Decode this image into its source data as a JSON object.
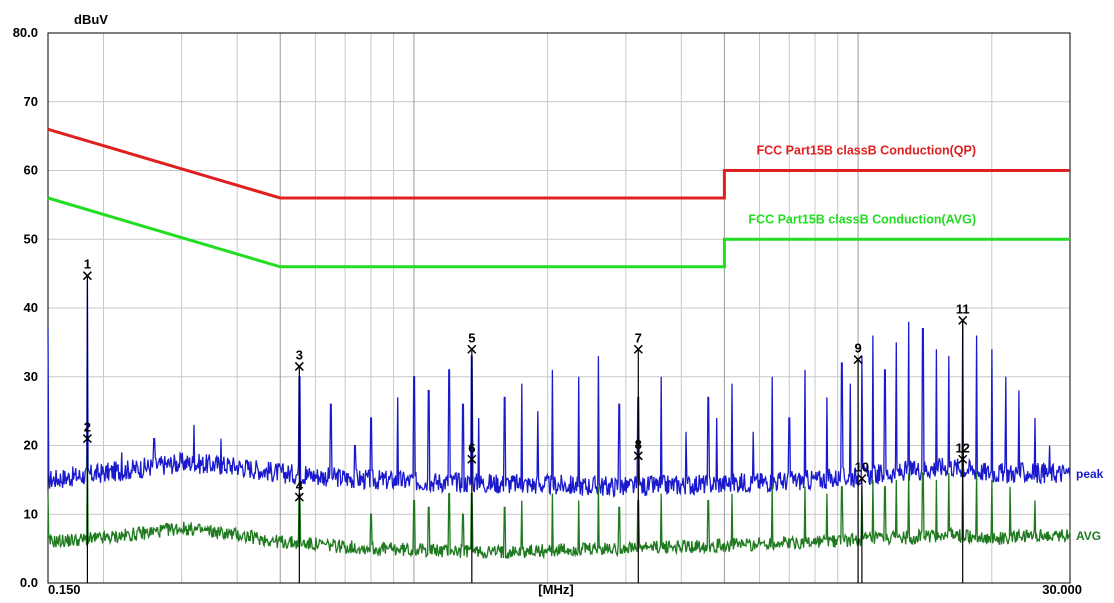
{
  "chart_data": {
    "type": "line",
    "title": "",
    "ylabel": "dBuV",
    "xlabel": "[MHz]",
    "x_scale": "log",
    "xlim": [
      0.15,
      30.0
    ],
    "ylim": [
      0,
      80
    ],
    "grid": true,
    "y_tick_labels": [
      {
        "value": 0,
        "label": "0.0"
      },
      {
        "value": 10,
        "label": "10"
      },
      {
        "value": 20,
        "label": "20"
      },
      {
        "value": 30,
        "label": "30"
      },
      {
        "value": 40,
        "label": "40"
      },
      {
        "value": 50,
        "label": "50"
      },
      {
        "value": 60,
        "label": "60"
      },
      {
        "value": 70,
        "label": "70"
      },
      {
        "value": 80,
        "label": "80.0"
      }
    ],
    "x_tick_labels": [
      {
        "value": 0.15,
        "label": "0.150"
      },
      {
        "value": 30.0,
        "label": "30.000"
      }
    ],
    "colors": {
      "qp_limit": "#e02020",
      "avg_limit": "#22dd22",
      "peak": "#1a1acc",
      "avg": "#1f7a1f",
      "marker": "#000000",
      "grid": "#c8c8c8"
    },
    "limit_lines": [
      {
        "name": "FCC  Part15B  classB  Conduction(QP)",
        "color_key": "qp_limit",
        "points": [
          [
            0.15,
            66
          ],
          [
            0.5,
            56
          ],
          [
            5.0,
            56
          ],
          [
            5.0,
            60
          ],
          [
            30.0,
            60
          ]
        ]
      },
      {
        "name": "FCC  Part15B  classB  Conduction(AVG)",
        "color_key": "avg_limit",
        "points": [
          [
            0.15,
            56
          ],
          [
            0.5,
            46
          ],
          [
            5.0,
            46
          ],
          [
            5.0,
            50
          ],
          [
            30.0,
            50
          ]
        ]
      }
    ],
    "traces": [
      {
        "name": "peak",
        "color_key": "peak",
        "baseline": [
          [
            0.15,
            15
          ],
          [
            0.2,
            16
          ],
          [
            0.3,
            17.5
          ],
          [
            0.4,
            17
          ],
          [
            0.5,
            16
          ],
          [
            0.8,
            15
          ],
          [
            1.5,
            14.5
          ],
          [
            3.0,
            14
          ],
          [
            5.0,
            14.5
          ],
          [
            8.0,
            15
          ],
          [
            12.0,
            16
          ],
          [
            16.0,
            17
          ],
          [
            20.0,
            16
          ],
          [
            30.0,
            16
          ]
        ],
        "spikes": [
          [
            0.15,
            37
          ],
          [
            0.184,
            44
          ],
          [
            0.22,
            19
          ],
          [
            0.26,
            21
          ],
          [
            0.32,
            23
          ],
          [
            0.368,
            21
          ],
          [
            0.552,
            30
          ],
          [
            0.57,
            17
          ],
          [
            0.65,
            26
          ],
          [
            0.736,
            20
          ],
          [
            0.8,
            24
          ],
          [
            0.92,
            27
          ],
          [
            1.0,
            30
          ],
          [
            1.08,
            28
          ],
          [
            1.2,
            31
          ],
          [
            1.29,
            26
          ],
          [
            1.35,
            33
          ],
          [
            1.4,
            24
          ],
          [
            1.6,
            27
          ],
          [
            1.75,
            29
          ],
          [
            1.9,
            25
          ],
          [
            2.05,
            31
          ],
          [
            2.35,
            30
          ],
          [
            2.6,
            33
          ],
          [
            2.9,
            26
          ],
          [
            3.2,
            27
          ],
          [
            3.6,
            30
          ],
          [
            4.1,
            22
          ],
          [
            4.6,
            27
          ],
          [
            4.8,
            24
          ],
          [
            5.2,
            29
          ],
          [
            5.8,
            22
          ],
          [
            6.4,
            30
          ],
          [
            7.0,
            24
          ],
          [
            7.6,
            31
          ],
          [
            8.5,
            27
          ],
          [
            9.2,
            32
          ],
          [
            9.6,
            29
          ],
          [
            10.2,
            33
          ],
          [
            10.8,
            36
          ],
          [
            11.5,
            31
          ],
          [
            12.2,
            35
          ],
          [
            13.0,
            38
          ],
          [
            14.0,
            37
          ],
          [
            15.0,
            34
          ],
          [
            16.0,
            33
          ],
          [
            17.2,
            38
          ],
          [
            18.5,
            36
          ],
          [
            20.0,
            34
          ],
          [
            21.5,
            30
          ],
          [
            23.0,
            28
          ],
          [
            25.0,
            24
          ],
          [
            27.0,
            20
          ]
        ]
      },
      {
        "name": "AVG",
        "color_key": "avg",
        "baseline": [
          [
            0.15,
            6
          ],
          [
            0.2,
            6.5
          ],
          [
            0.3,
            8
          ],
          [
            0.4,
            7
          ],
          [
            0.5,
            6
          ],
          [
            0.8,
            5
          ],
          [
            1.5,
            4.5
          ],
          [
            3.0,
            5
          ],
          [
            5.0,
            5.5
          ],
          [
            8.0,
            6
          ],
          [
            12.0,
            6.5
          ],
          [
            16.0,
            7
          ],
          [
            20.0,
            6.5
          ],
          [
            30.0,
            7
          ]
        ],
        "spikes": [
          [
            0.15,
            13
          ],
          [
            0.184,
            20
          ],
          [
            0.552,
            13
          ],
          [
            0.8,
            10
          ],
          [
            1.0,
            12
          ],
          [
            1.08,
            11
          ],
          [
            1.2,
            13
          ],
          [
            1.29,
            10
          ],
          [
            1.35,
            13
          ],
          [
            1.6,
            11
          ],
          [
            1.75,
            12
          ],
          [
            2.05,
            13
          ],
          [
            2.35,
            12
          ],
          [
            2.6,
            14
          ],
          [
            2.9,
            11
          ],
          [
            3.2,
            12
          ],
          [
            3.6,
            13
          ],
          [
            4.6,
            12
          ],
          [
            5.2,
            13
          ],
          [
            6.4,
            14
          ],
          [
            7.6,
            14
          ],
          [
            8.5,
            13
          ],
          [
            9.2,
            14
          ],
          [
            10.2,
            14
          ],
          [
            10.8,
            15
          ],
          [
            11.5,
            14
          ],
          [
            12.2,
            15
          ],
          [
            13.0,
            16
          ],
          [
            14.0,
            16
          ],
          [
            15.0,
            15
          ],
          [
            16.0,
            16
          ],
          [
            17.2,
            17
          ],
          [
            18.5,
            16
          ],
          [
            20.0,
            15
          ],
          [
            22.0,
            14
          ],
          [
            25.0,
            12
          ]
        ]
      }
    ],
    "markers": [
      {
        "label": "1",
        "freq": 0.184,
        "level": 44.7
      },
      {
        "label": "2",
        "freq": 0.184,
        "level": 21.0
      },
      {
        "label": "3",
        "freq": 0.552,
        "level": 31.5
      },
      {
        "label": "4",
        "freq": 0.552,
        "level": 12.5
      },
      {
        "label": "5",
        "freq": 1.35,
        "level": 34.0
      },
      {
        "label": "6",
        "freq": 1.35,
        "level": 18.0
      },
      {
        "label": "7",
        "freq": 3.2,
        "level": 34.0
      },
      {
        "label": "8",
        "freq": 3.2,
        "level": 18.5
      },
      {
        "label": "9",
        "freq": 10.0,
        "level": 32.5
      },
      {
        "label": "10",
        "freq": 10.2,
        "level": 15.2
      },
      {
        "label": "11",
        "freq": 17.2,
        "level": 38.2
      },
      {
        "label": "12",
        "freq": 17.2,
        "level": 18.0
      }
    ]
  }
}
